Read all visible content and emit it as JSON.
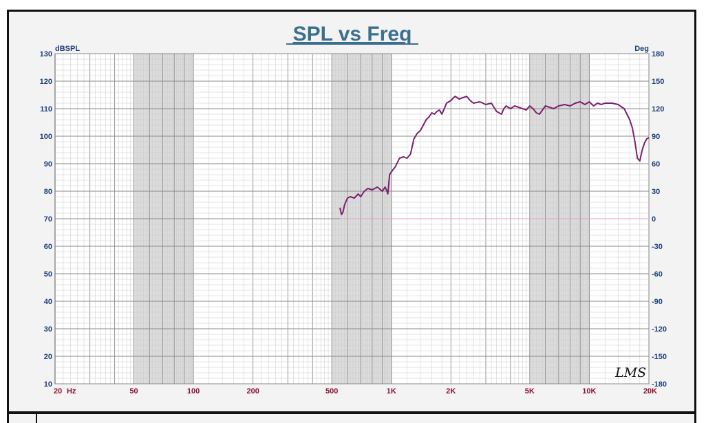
{
  "chart_data": {
    "type": "line",
    "title": "SPL vs Freq",
    "ylabel": "dBSPL",
    "y2label": "Deg",
    "xlabel": "Hz",
    "x_scale": "log",
    "xlim": [
      20,
      20000
    ],
    "ylim": [
      10,
      130
    ],
    "y2lim": [
      -180,
      180
    ],
    "x_ticks": [
      {
        "value": 20,
        "label": "20"
      },
      {
        "value": 50,
        "label": "50"
      },
      {
        "value": 100,
        "label": "100"
      },
      {
        "value": 200,
        "label": "200"
      },
      {
        "value": 500,
        "label": "500"
      },
      {
        "value": 1000,
        "label": "1K"
      },
      {
        "value": 2000,
        "label": "2K"
      },
      {
        "value": 5000,
        "label": "5K"
      },
      {
        "value": 10000,
        "label": "10K"
      },
      {
        "value": 20000,
        "label": "20K"
      }
    ],
    "y_ticks": [
      "10",
      "20",
      "30",
      "40",
      "50",
      "60",
      "70",
      "80",
      "90",
      "100",
      "110",
      "120",
      "130"
    ],
    "y2_ticks": [
      "-180",
      "-150",
      "-120",
      "-90",
      "-60",
      "-30",
      "0",
      "30",
      "60",
      "90",
      "120",
      "150",
      "180"
    ],
    "grid": true,
    "watermark": "LMS",
    "colors": {
      "spl": "#7b1f6e",
      "phase": "#e0a0d0",
      "axis_text": "#1d3f7a",
      "x_tick_text": "#8a1030",
      "title": "#3a6f8e",
      "grid_minor": "#c8c8c8",
      "grid_major": "#8a8a8a",
      "plot_bg": "#ffffff"
    },
    "series": [
      {
        "name": "SPL",
        "x": [
          550,
          560,
          570,
          580,
          600,
          620,
          650,
          680,
          700,
          730,
          760,
          800,
          850,
          900,
          930,
          950,
          960,
          980,
          1000,
          1050,
          1100,
          1150,
          1200,
          1250,
          1300,
          1350,
          1400,
          1450,
          1500,
          1550,
          1600,
          1650,
          1700,
          1750,
          1800,
          1850,
          1900,
          1950,
          2000,
          2100,
          2200,
          2300,
          2400,
          2500,
          2600,
          2800,
          3000,
          3200,
          3400,
          3600,
          3700,
          3800,
          4000,
          4200,
          4400,
          4600,
          4800,
          5000,
          5200,
          5400,
          5600,
          5800,
          6000,
          6300,
          6600,
          7000,
          7500,
          8000,
          8500,
          9000,
          9500,
          10000,
          10500,
          11000,
          11500,
          12000,
          13000,
          14000,
          15000,
          16000,
          16500,
          17000,
          17500,
          18000,
          18500,
          19000,
          19500,
          20000
        ],
        "y": [
          74,
          71.5,
          72.5,
          75,
          77.5,
          78,
          77.5,
          79,
          78,
          80,
          81,
          80.5,
          81.5,
          80,
          81.5,
          80,
          79,
          86,
          87,
          89,
          92,
          92.5,
          92,
          93.5,
          99,
          101,
          102,
          104,
          106,
          107,
          108.5,
          108,
          109,
          109.5,
          108,
          110,
          112,
          112.5,
          113,
          114.5,
          113.5,
          114,
          114.5,
          113,
          112,
          112.5,
          111.5,
          112,
          109,
          108,
          110,
          111,
          110,
          111,
          110.5,
          110,
          109.5,
          111,
          110,
          108.5,
          108,
          109.5,
          111,
          110.5,
          110,
          111,
          111.5,
          111,
          112,
          112.5,
          111.5,
          112.5,
          111,
          112,
          111.5,
          112,
          112,
          111.5,
          110,
          106,
          103,
          98,
          92,
          91,
          95,
          97.5,
          99,
          99.5
        ]
      },
      {
        "name": "Phase",
        "x": [
          550,
          20000
        ],
        "y2": [
          0,
          0
        ]
      }
    ]
  }
}
